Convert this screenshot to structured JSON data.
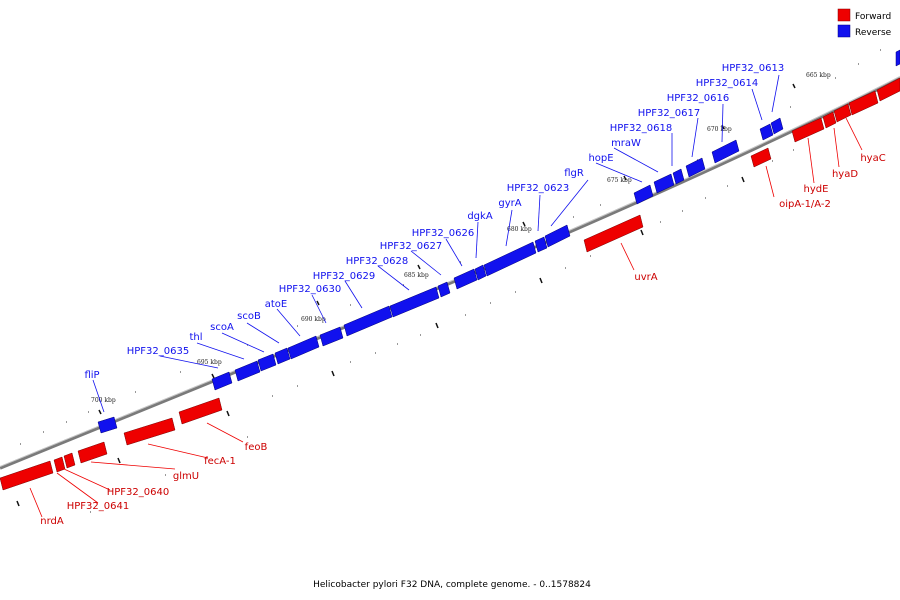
{
  "caption": "Helicobacter pylori F32 DNA, complete genome. - 0..1578824",
  "colors": {
    "forward": "#ee0000",
    "reverse": "#1111ee",
    "backbone": "#777777"
  },
  "legend": [
    {
      "label": "Forward",
      "color": "#ee0000"
    },
    {
      "label": "Reverse",
      "color": "#1111ee"
    }
  ],
  "scale_ticks": [
    "665 kbp",
    "670 kbp",
    "675 kbp",
    "680 kbp",
    "685 kbp",
    "690 kbp",
    "695 kbp",
    "700 kbp"
  ],
  "reverse_genes": [
    "HPF32_0613",
    "HPF32_0614",
    "HPF32_0616",
    "HPF32_0617",
    "HPF32_0618",
    "mraW",
    "hopE",
    "flgR",
    "HPF32_0623",
    "gyrA",
    "dgkA",
    "HPF32_0626",
    "HPF32_0627",
    "HPF32_0628",
    "HPF32_0629",
    "HPF32_0630",
    "atoE",
    "scoB",
    "scoA",
    "thl",
    "HPF32_0635",
    "fliP"
  ],
  "forward_genes": [
    "hyaC",
    "hyaD",
    "hydE",
    "oipA-1/A-2",
    "uvrA",
    "feoB",
    "fecA-1",
    "glmU",
    "HPF32_0640",
    "HPF32_0641",
    "nrdA"
  ]
}
